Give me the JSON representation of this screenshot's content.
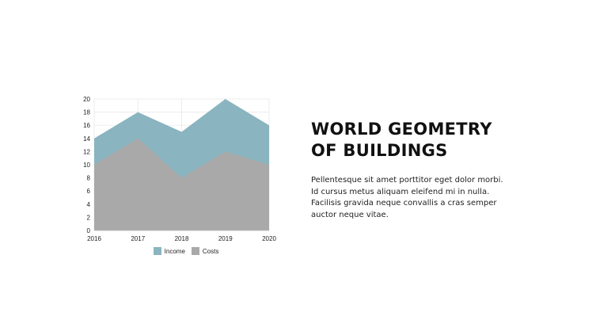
{
  "slide": {
    "title_lines": [
      "WORLD GEOMETRY",
      "OF BUILDINGS"
    ],
    "body_lines": [
      "Pellentesque sit amet porttitor eget dolor morbi.",
      "Id cursus metus aliquam eleifend mi in nulla.",
      "Facilisis gravida neque convallis a cras semper",
      "auctor neque vitae."
    ]
  },
  "chart_data": {
    "type": "area",
    "stacked": false,
    "x": [
      "2016",
      "2017",
      "2018",
      "2019",
      "2020"
    ],
    "series": [
      {
        "name": "Income",
        "values": [
          14,
          18,
          15,
          20,
          16
        ],
        "color": "#8ab4bf"
      },
      {
        "name": "Costs",
        "values": [
          10,
          14,
          8,
          12,
          10
        ],
        "color": "#a9a9a9"
      }
    ],
    "yticks": [
      0,
      2,
      4,
      6,
      8,
      10,
      12,
      14,
      16,
      18,
      20
    ],
    "ylim": [
      0,
      20
    ],
    "grid": true,
    "legend": "bottom"
  }
}
